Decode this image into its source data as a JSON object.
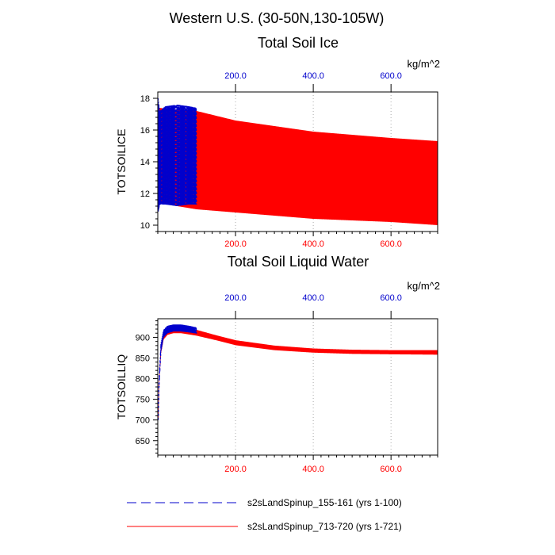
{
  "figure": {
    "title": "Western U.S. (30-50N,130-105W)"
  },
  "legend": {
    "entries": [
      {
        "label": "s2sLandSpinup_155-161 (yrs 1-100)",
        "color": "#0000cc",
        "style": "dashed"
      },
      {
        "label": "s2sLandSpinup_713-720 (yrs 1-721)",
        "color": "#ff0000",
        "style": "solid"
      }
    ]
  },
  "chart_data": [
    {
      "type": "line",
      "title": "Total Soil Ice",
      "ylabel": "TOTSOILICE",
      "units": "kg/m^2",
      "xlim": [
        0,
        720
      ],
      "ylim": [
        9.6,
        18.4
      ],
      "yticks": [
        10,
        12,
        14,
        16,
        18
      ],
      "ytick_labels": [
        "10",
        "12",
        "14",
        "16",
        "18"
      ],
      "xticks": [
        200,
        400,
        600
      ],
      "xtick_labels_bottom": [
        "200.0",
        "400.0",
        "600.0"
      ],
      "xtick_labels_top": [
        "200.0",
        "400.0",
        "600.0"
      ],
      "bottom_tick_color": "#ff0000",
      "top_tick_color": "#0000cc",
      "grid": "vertical-dotted",
      "series": [
        {
          "name": "s2sLandSpinup_713-720 (yrs 1-721)",
          "color": "#ff0000",
          "style": "solid",
          "cycles": 721,
          "envelope_x": [
            1,
            100,
            200,
            400,
            600,
            721
          ],
          "envelope_max": [
            17.4,
            17.2,
            16.6,
            15.9,
            15.5,
            15.3
          ],
          "envelope_min": [
            11.4,
            11.0,
            10.8,
            10.4,
            10.2,
            10.0
          ]
        },
        {
          "name": "s2sLandSpinup_155-161 (yrs 1-100)",
          "color": "#0000cc",
          "style": "dashed",
          "cycles": 100,
          "envelope_x": [
            1,
            5,
            20,
            50,
            80,
            100
          ],
          "envelope_max": [
            18.0,
            17.2,
            17.5,
            17.6,
            17.5,
            17.4
          ],
          "envelope_min": [
            10.8,
            11.3,
            11.3,
            11.2,
            11.3,
            11.3
          ]
        }
      ]
    },
    {
      "type": "line",
      "title": "Total Soil Liquid Water",
      "ylabel": "TOTSOILLIQ",
      "units": "kg/m^2",
      "xlim": [
        0,
        720
      ],
      "ylim": [
        615,
        945
      ],
      "yticks": [
        650,
        700,
        750,
        800,
        850,
        900
      ],
      "ytick_labels": [
        "650",
        "700",
        "750",
        "800",
        "850",
        "900"
      ],
      "xticks": [
        200,
        400,
        600
      ],
      "xtick_labels_bottom": [
        "200.0",
        "400.0",
        "600.0"
      ],
      "xtick_labels_top": [
        "200.0",
        "400.0",
        "600.0"
      ],
      "bottom_tick_color": "#ff0000",
      "top_tick_color": "#0000cc",
      "grid": "vertical-dotted",
      "series": [
        {
          "name": "s2sLandSpinup_713-720 (yrs 1-721)",
          "color": "#ff0000",
          "style": "solid",
          "cycles": 721,
          "envelope_x": [
            1,
            3,
            8,
            15,
            25,
            40,
            60,
            100,
            150,
            200,
            300,
            400,
            500,
            600,
            721
          ],
          "envelope_max": [
            700,
            790,
            880,
            910,
            922,
            926,
            926,
            918,
            905,
            893,
            880,
            873,
            870,
            869,
            869
          ],
          "envelope_min": [
            690,
            770,
            860,
            895,
            906,
            910,
            910,
            904,
            893,
            881,
            869,
            863,
            860,
            859,
            858
          ]
        },
        {
          "name": "s2sLandSpinup_155-161 (yrs 1-100)",
          "color": "#0000cc",
          "style": "dashed",
          "cycles": 100,
          "envelope_x": [
            1,
            3,
            8,
            15,
            25,
            40,
            60,
            80,
            100
          ],
          "envelope_max": [
            700,
            790,
            885,
            918,
            928,
            931,
            931,
            928,
            924
          ],
          "envelope_min": [
            690,
            770,
            865,
            900,
            910,
            914,
            914,
            912,
            909
          ]
        }
      ]
    }
  ]
}
